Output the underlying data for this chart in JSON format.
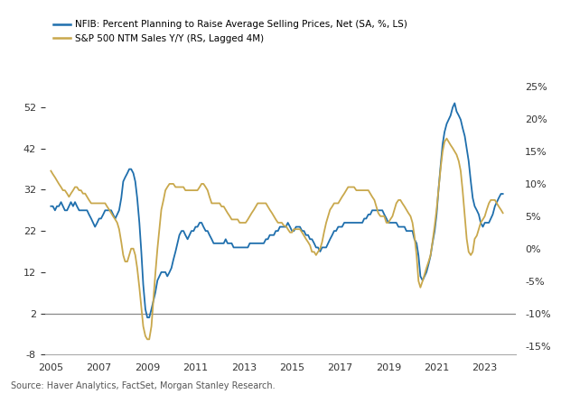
{
  "legend1": "NFIB: Percent Planning to Raise Average Selling Prices, Net (SA, %, LS)",
  "legend2": "S&P 500 NTM Sales Y/Y (RS, Lagged 4M)",
  "source_text": "Source: Haver Analytics, FactSet, Morgan Stanley Research.",
  "line1_color": "#1f6fad",
  "line2_color": "#c9a84c",
  "background_color": "#ffffff",
  "ylim_left": [
    -8,
    57
  ],
  "ylim_right": [
    -15,
    25
  ],
  "yticks_left": [
    -8,
    2,
    12,
    22,
    32,
    42,
    52
  ],
  "yticks_right": [
    -15,
    -10,
    -5,
    0,
    5,
    10,
    15,
    20,
    25
  ],
  "hline_y": 2,
  "hline_color": "#888888",
  "nfib_dates": [
    2005.0,
    2005.08,
    2005.17,
    2005.25,
    2005.33,
    2005.42,
    2005.5,
    2005.58,
    2005.67,
    2005.75,
    2005.83,
    2005.92,
    2006.0,
    2006.08,
    2006.17,
    2006.25,
    2006.33,
    2006.42,
    2006.5,
    2006.58,
    2006.67,
    2006.75,
    2006.83,
    2006.92,
    2007.0,
    2007.08,
    2007.17,
    2007.25,
    2007.33,
    2007.42,
    2007.5,
    2007.58,
    2007.67,
    2007.75,
    2007.83,
    2007.92,
    2008.0,
    2008.08,
    2008.17,
    2008.25,
    2008.33,
    2008.42,
    2008.5,
    2008.58,
    2008.67,
    2008.75,
    2008.83,
    2008.92,
    2009.0,
    2009.08,
    2009.17,
    2009.25,
    2009.33,
    2009.42,
    2009.5,
    2009.58,
    2009.67,
    2009.75,
    2009.83,
    2009.92,
    2010.0,
    2010.08,
    2010.17,
    2010.25,
    2010.33,
    2010.42,
    2010.5,
    2010.58,
    2010.67,
    2010.75,
    2010.83,
    2010.92,
    2011.0,
    2011.08,
    2011.17,
    2011.25,
    2011.33,
    2011.42,
    2011.5,
    2011.58,
    2011.67,
    2011.75,
    2011.83,
    2011.92,
    2012.0,
    2012.08,
    2012.17,
    2012.25,
    2012.33,
    2012.42,
    2012.5,
    2012.58,
    2012.67,
    2012.75,
    2012.83,
    2012.92,
    2013.0,
    2013.08,
    2013.17,
    2013.25,
    2013.33,
    2013.42,
    2013.5,
    2013.58,
    2013.67,
    2013.75,
    2013.83,
    2013.92,
    2014.0,
    2014.08,
    2014.17,
    2014.25,
    2014.33,
    2014.42,
    2014.5,
    2014.58,
    2014.67,
    2014.75,
    2014.83,
    2014.92,
    2015.0,
    2015.08,
    2015.17,
    2015.25,
    2015.33,
    2015.42,
    2015.5,
    2015.58,
    2015.67,
    2015.75,
    2015.83,
    2015.92,
    2016.0,
    2016.08,
    2016.17,
    2016.25,
    2016.33,
    2016.42,
    2016.5,
    2016.58,
    2016.67,
    2016.75,
    2016.83,
    2016.92,
    2017.0,
    2017.08,
    2017.17,
    2017.25,
    2017.33,
    2017.42,
    2017.5,
    2017.58,
    2017.67,
    2017.75,
    2017.83,
    2017.92,
    2018.0,
    2018.08,
    2018.17,
    2018.25,
    2018.33,
    2018.42,
    2018.5,
    2018.58,
    2018.67,
    2018.75,
    2018.83,
    2018.92,
    2019.0,
    2019.08,
    2019.17,
    2019.25,
    2019.33,
    2019.42,
    2019.5,
    2019.58,
    2019.67,
    2019.75,
    2019.83,
    2019.92,
    2020.0,
    2020.08,
    2020.17,
    2020.25,
    2020.33,
    2020.42,
    2020.5,
    2020.58,
    2020.67,
    2020.75,
    2020.83,
    2020.92,
    2021.0,
    2021.08,
    2021.17,
    2021.25,
    2021.33,
    2021.42,
    2021.5,
    2021.58,
    2021.67,
    2021.75,
    2021.83,
    2021.92,
    2022.0,
    2022.08,
    2022.17,
    2022.25,
    2022.33,
    2022.42,
    2022.5,
    2022.58,
    2022.67,
    2022.75,
    2022.83,
    2022.92,
    2023.0,
    2023.08,
    2023.17,
    2023.25,
    2023.33,
    2023.42,
    2023.5,
    2023.58,
    2023.67,
    2023.75
  ],
  "nfib_values": [
    28,
    28,
    27,
    28,
    28,
    29,
    28,
    27,
    27,
    28,
    29,
    28,
    29,
    28,
    27,
    27,
    27,
    27,
    27,
    26,
    25,
    24,
    23,
    24,
    25,
    25,
    26,
    27,
    27,
    27,
    27,
    26,
    25,
    26,
    27,
    30,
    34,
    35,
    36,
    37,
    37,
    36,
    34,
    30,
    24,
    17,
    9,
    3,
    1,
    1,
    3,
    5,
    7,
    10,
    11,
    12,
    12,
    12,
    11,
    12,
    13,
    15,
    17,
    19,
    21,
    22,
    22,
    21,
    20,
    21,
    22,
    22,
    23,
    23,
    24,
    24,
    23,
    22,
    22,
    21,
    20,
    19,
    19,
    19,
    19,
    19,
    19,
    20,
    19,
    19,
    19,
    18,
    18,
    18,
    18,
    18,
    18,
    18,
    18,
    19,
    19,
    19,
    19,
    19,
    19,
    19,
    19,
    20,
    20,
    21,
    21,
    21,
    22,
    22,
    23,
    23,
    23,
    23,
    24,
    23,
    22,
    22,
    23,
    23,
    23,
    22,
    22,
    21,
    21,
    20,
    20,
    19,
    18,
    18,
    17,
    18,
    18,
    18,
    19,
    20,
    21,
    22,
    22,
    23,
    23,
    23,
    24,
    24,
    24,
    24,
    24,
    24,
    24,
    24,
    24,
    24,
    25,
    25,
    26,
    26,
    27,
    27,
    27,
    27,
    27,
    27,
    26,
    25,
    24,
    24,
    24,
    24,
    24,
    23,
    23,
    23,
    23,
    22,
    22,
    22,
    22,
    20,
    19,
    16,
    11,
    10,
    11,
    12,
    14,
    16,
    19,
    22,
    26,
    32,
    38,
    43,
    46,
    48,
    49,
    50,
    52,
    53,
    51,
    50,
    49,
    47,
    45,
    42,
    39,
    34,
    30,
    28,
    27,
    26,
    24,
    23,
    24,
    24,
    24,
    25,
    26,
    28,
    29,
    30,
    31,
    31
  ],
  "sp500_dates": [
    2005.0,
    2005.08,
    2005.17,
    2005.25,
    2005.33,
    2005.42,
    2005.5,
    2005.58,
    2005.67,
    2005.75,
    2005.83,
    2005.92,
    2006.0,
    2006.08,
    2006.17,
    2006.25,
    2006.33,
    2006.42,
    2006.5,
    2006.58,
    2006.67,
    2006.75,
    2006.83,
    2006.92,
    2007.0,
    2007.08,
    2007.17,
    2007.25,
    2007.33,
    2007.42,
    2007.5,
    2007.58,
    2007.67,
    2007.75,
    2007.83,
    2007.92,
    2008.0,
    2008.08,
    2008.17,
    2008.25,
    2008.33,
    2008.42,
    2008.5,
    2008.58,
    2008.67,
    2008.75,
    2008.83,
    2008.92,
    2009.0,
    2009.08,
    2009.17,
    2009.25,
    2009.33,
    2009.42,
    2009.5,
    2009.58,
    2009.67,
    2009.75,
    2009.83,
    2009.92,
    2010.0,
    2010.08,
    2010.17,
    2010.25,
    2010.33,
    2010.42,
    2010.5,
    2010.58,
    2010.67,
    2010.75,
    2010.83,
    2010.92,
    2011.0,
    2011.08,
    2011.17,
    2011.25,
    2011.33,
    2011.42,
    2011.5,
    2011.58,
    2011.67,
    2011.75,
    2011.83,
    2011.92,
    2012.0,
    2012.08,
    2012.17,
    2012.25,
    2012.33,
    2012.42,
    2012.5,
    2012.58,
    2012.67,
    2012.75,
    2012.83,
    2012.92,
    2013.0,
    2013.08,
    2013.17,
    2013.25,
    2013.33,
    2013.42,
    2013.5,
    2013.58,
    2013.67,
    2013.75,
    2013.83,
    2013.92,
    2014.0,
    2014.08,
    2014.17,
    2014.25,
    2014.33,
    2014.42,
    2014.5,
    2014.58,
    2014.67,
    2014.75,
    2014.83,
    2014.92,
    2015.0,
    2015.08,
    2015.17,
    2015.25,
    2015.33,
    2015.42,
    2015.5,
    2015.58,
    2015.67,
    2015.75,
    2015.83,
    2015.92,
    2016.0,
    2016.08,
    2016.17,
    2016.25,
    2016.33,
    2016.42,
    2016.5,
    2016.58,
    2016.67,
    2016.75,
    2016.83,
    2016.92,
    2017.0,
    2017.08,
    2017.17,
    2017.25,
    2017.33,
    2017.42,
    2017.5,
    2017.58,
    2017.67,
    2017.75,
    2017.83,
    2017.92,
    2018.0,
    2018.08,
    2018.17,
    2018.25,
    2018.33,
    2018.42,
    2018.5,
    2018.58,
    2018.67,
    2018.75,
    2018.83,
    2018.92,
    2019.0,
    2019.08,
    2019.17,
    2019.25,
    2019.33,
    2019.42,
    2019.5,
    2019.58,
    2019.67,
    2019.75,
    2019.83,
    2019.92,
    2020.0,
    2020.08,
    2020.17,
    2020.25,
    2020.33,
    2020.42,
    2020.5,
    2020.58,
    2020.67,
    2020.75,
    2020.83,
    2020.92,
    2021.0,
    2021.08,
    2021.17,
    2021.25,
    2021.33,
    2021.42,
    2021.5,
    2021.58,
    2021.67,
    2021.75,
    2021.83,
    2021.92,
    2022.0,
    2022.08,
    2022.17,
    2022.25,
    2022.33,
    2022.42,
    2022.5,
    2022.58,
    2022.67,
    2022.75,
    2022.83,
    2022.92,
    2023.0,
    2023.08,
    2023.17,
    2023.25,
    2023.33,
    2023.42,
    2023.5,
    2023.58,
    2023.67,
    2023.75
  ],
  "sp500_values": [
    12.0,
    11.5,
    11.0,
    10.5,
    10.0,
    9.5,
    9.0,
    9.0,
    8.5,
    8.0,
    8.5,
    9.0,
    9.5,
    9.5,
    9.0,
    9.0,
    8.5,
    8.5,
    8.0,
    7.5,
    7.0,
    7.0,
    7.0,
    7.0,
    7.0,
    7.0,
    7.0,
    7.0,
    6.5,
    6.0,
    5.5,
    5.0,
    4.5,
    4.0,
    3.0,
    1.0,
    -1.0,
    -2.0,
    -2.0,
    -1.0,
    0.0,
    0.0,
    -1.0,
    -3.0,
    -6.0,
    -9.0,
    -12.0,
    -13.5,
    -14.0,
    -14.0,
    -12.0,
    -8.0,
    -4.0,
    0.0,
    3.0,
    6.0,
    7.5,
    9.0,
    9.5,
    10.0,
    10.0,
    10.0,
    9.5,
    9.5,
    9.5,
    9.5,
    9.5,
    9.0,
    9.0,
    9.0,
    9.0,
    9.0,
    9.0,
    9.0,
    9.5,
    10.0,
    10.0,
    9.5,
    9.0,
    8.0,
    7.0,
    7.0,
    7.0,
    7.0,
    7.0,
    6.5,
    6.5,
    6.0,
    5.5,
    5.0,
    4.5,
    4.5,
    4.5,
    4.5,
    4.0,
    4.0,
    4.0,
    4.0,
    4.5,
    5.0,
    5.5,
    6.0,
    6.5,
    7.0,
    7.0,
    7.0,
    7.0,
    7.0,
    6.5,
    6.0,
    5.5,
    5.0,
    4.5,
    4.0,
    4.0,
    4.0,
    3.5,
    3.5,
    3.0,
    2.5,
    2.5,
    3.0,
    3.0,
    3.0,
    3.0,
    2.5,
    2.0,
    1.5,
    1.0,
    0.5,
    -0.5,
    -0.5,
    -1.0,
    -0.5,
    0.0,
    1.0,
    2.5,
    4.0,
    5.0,
    6.0,
    6.5,
    7.0,
    7.0,
    7.0,
    7.5,
    8.0,
    8.5,
    9.0,
    9.5,
    9.5,
    9.5,
    9.5,
    9.0,
    9.0,
    9.0,
    9.0,
    9.0,
    9.0,
    9.0,
    8.5,
    8.0,
    7.5,
    6.5,
    5.5,
    5.0,
    5.0,
    5.0,
    4.0,
    4.0,
    4.5,
    5.0,
    6.0,
    7.0,
    7.5,
    7.5,
    7.0,
    6.5,
    6.0,
    5.5,
    5.0,
    4.0,
    2.0,
    -1.0,
    -5.0,
    -6.0,
    -5.0,
    -4.0,
    -3.0,
    -2.0,
    -1.0,
    1.0,
    3.5,
    6.0,
    9.0,
    12.5,
    15.0,
    16.5,
    17.0,
    16.5,
    16.0,
    15.5,
    15.0,
    14.5,
    13.5,
    12.0,
    9.0,
    5.0,
    1.5,
    -0.5,
    -1.0,
    -0.5,
    1.5,
    2.0,
    3.0,
    4.0,
    4.5,
    5.0,
    6.0,
    7.0,
    7.5,
    7.5,
    7.5,
    7.0,
    6.5,
    6.0,
    5.5
  ],
  "xlim": [
    2004.75,
    2024.3
  ],
  "xticks": [
    2005,
    2007,
    2009,
    2011,
    2013,
    2015,
    2017,
    2019,
    2021,
    2023
  ]
}
